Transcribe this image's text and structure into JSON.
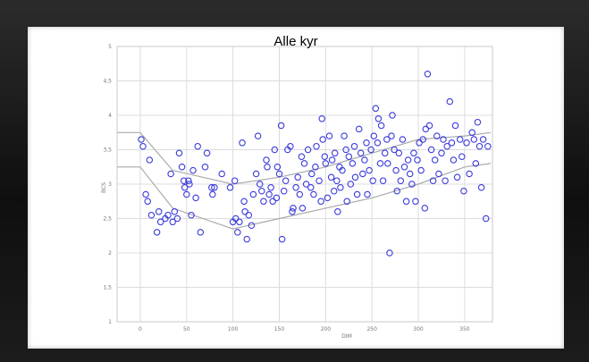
{
  "chart_data": {
    "type": "scatter",
    "title": "Alle kyr",
    "xlabel": "DIM",
    "ylabel": "BCS",
    "xlim": [
      -25,
      380
    ],
    "ylim": [
      1,
      5
    ],
    "x_ticks": [
      "0",
      "50",
      "100",
      "150",
      "200",
      "250",
      "300",
      "350"
    ],
    "y_ticks": [
      "1",
      "1,5",
      "2",
      "2,5",
      "3",
      "3,5",
      "4",
      "4,5",
      "5"
    ],
    "grid": true,
    "colors": {
      "points": "#3a3adb",
      "bands": "#aaaaaa",
      "grid": "#dcdcdc"
    },
    "points": [
      [
        1,
        3.65
      ],
      [
        3,
        3.55
      ],
      [
        6,
        2.85
      ],
      [
        8,
        2.75
      ],
      [
        10,
        3.35
      ],
      [
        12,
        2.55
      ],
      [
        18,
        2.3
      ],
      [
        20,
        2.6
      ],
      [
        22,
        2.45
      ],
      [
        27,
        2.5
      ],
      [
        30,
        2.55
      ],
      [
        33,
        3.15
      ],
      [
        35,
        2.45
      ],
      [
        37,
        2.6
      ],
      [
        40,
        2.5
      ],
      [
        42,
        3.45
      ],
      [
        45,
        3.25
      ],
      [
        47,
        3.05
      ],
      [
        48,
        2.95
      ],
      [
        50,
        2.85
      ],
      [
        52,
        3.05
      ],
      [
        53,
        3.0
      ],
      [
        55,
        2.55
      ],
      [
        57,
        3.2
      ],
      [
        60,
        2.8
      ],
      [
        62,
        3.55
      ],
      [
        65,
        2.3
      ],
      [
        70,
        3.25
      ],
      [
        72,
        3.45
      ],
      [
        77,
        2.95
      ],
      [
        78,
        2.85
      ],
      [
        80,
        2.95
      ],
      [
        88,
        3.15
      ],
      [
        97,
        2.95
      ],
      [
        100,
        2.45
      ],
      [
        102,
        3.05
      ],
      [
        103,
        2.5
      ],
      [
        105,
        2.3
      ],
      [
        107,
        2.45
      ],
      [
        110,
        3.6
      ],
      [
        112,
        2.75
      ],
      [
        113,
        2.6
      ],
      [
        115,
        2.2
      ],
      [
        117,
        2.55
      ],
      [
        120,
        2.4
      ],
      [
        122,
        2.85
      ],
      [
        125,
        3.15
      ],
      [
        127,
        3.7
      ],
      [
        129,
        3.0
      ],
      [
        131,
        2.9
      ],
      [
        133,
        2.75
      ],
      [
        136,
        3.35
      ],
      [
        137,
        3.25
      ],
      [
        139,
        2.85
      ],
      [
        141,
        2.95
      ],
      [
        143,
        2.75
      ],
      [
        145,
        3.5
      ],
      [
        147,
        2.8
      ],
      [
        148,
        3.25
      ],
      [
        150,
        3.15
      ],
      [
        152,
        3.85
      ],
      [
        153,
        2.2
      ],
      [
        155,
        2.9
      ],
      [
        157,
        3.05
      ],
      [
        159,
        3.5
      ],
      [
        162,
        3.55
      ],
      [
        164,
        2.6
      ],
      [
        165,
        2.65
      ],
      [
        168,
        2.95
      ],
      [
        170,
        3.1
      ],
      [
        172,
        2.85
      ],
      [
        174,
        3.4
      ],
      [
        175,
        2.65
      ],
      [
        177,
        3.3
      ],
      [
        179,
        3.0
      ],
      [
        181,
        3.5
      ],
      [
        184,
        2.95
      ],
      [
        185,
        3.15
      ],
      [
        187,
        2.85
      ],
      [
        189,
        3.25
      ],
      [
        190,
        3.55
      ],
      [
        193,
        3.05
      ],
      [
        195,
        2.75
      ],
      [
        196,
        3.95
      ],
      [
        197,
        3.65
      ],
      [
        199,
        3.4
      ],
      [
        200,
        3.3
      ],
      [
        202,
        2.8
      ],
      [
        204,
        3.7
      ],
      [
        206,
        3.1
      ],
      [
        207,
        3.35
      ],
      [
        209,
        2.9
      ],
      [
        210,
        3.45
      ],
      [
        212,
        3.05
      ],
      [
        213,
        2.6
      ],
      [
        215,
        3.25
      ],
      [
        216,
        2.95
      ],
      [
        218,
        3.2
      ],
      [
        220,
        3.7
      ],
      [
        222,
        3.5
      ],
      [
        223,
        2.75
      ],
      [
        225,
        3.4
      ],
      [
        227,
        3.0
      ],
      [
        229,
        3.3
      ],
      [
        231,
        3.55
      ],
      [
        232,
        3.1
      ],
      [
        234,
        2.85
      ],
      [
        236,
        3.8
      ],
      [
        238,
        3.45
      ],
      [
        240,
        3.15
      ],
      [
        242,
        3.35
      ],
      [
        244,
        3.6
      ],
      [
        245,
        2.85
      ],
      [
        247,
        3.2
      ],
      [
        249,
        3.5
      ],
      [
        251,
        3.05
      ],
      [
        252,
        3.7
      ],
      [
        254,
        4.1
      ],
      [
        256,
        3.6
      ],
      [
        257,
        3.95
      ],
      [
        259,
        3.3
      ],
      [
        260,
        3.85
      ],
      [
        262,
        3.05
      ],
      [
        264,
        3.45
      ],
      [
        266,
        3.65
      ],
      [
        267,
        3.3
      ],
      [
        269,
        2.0
      ],
      [
        271,
        3.7
      ],
      [
        272,
        4.0
      ],
      [
        274,
        3.5
      ],
      [
        276,
        3.2
      ],
      [
        277,
        2.9
      ],
      [
        279,
        3.45
      ],
      [
        281,
        3.05
      ],
      [
        283,
        3.65
      ],
      [
        285,
        3.25
      ],
      [
        287,
        2.75
      ],
      [
        289,
        3.35
      ],
      [
        291,
        3.15
      ],
      [
        293,
        3.0
      ],
      [
        295,
        3.45
      ],
      [
        297,
        2.75
      ],
      [
        299,
        3.35
      ],
      [
        301,
        3.6
      ],
      [
        303,
        3.2
      ],
      [
        305,
        3.65
      ],
      [
        307,
        2.65
      ],
      [
        308,
        3.8
      ],
      [
        310,
        4.6
      ],
      [
        312,
        3.85
      ],
      [
        314,
        3.5
      ],
      [
        316,
        3.05
      ],
      [
        318,
        3.35
      ],
      [
        320,
        3.7
      ],
      [
        322,
        3.15
      ],
      [
        325,
        3.45
      ],
      [
        327,
        3.65
      ],
      [
        329,
        3.05
      ],
      [
        331,
        3.55
      ],
      [
        334,
        4.2
      ],
      [
        336,
        3.6
      ],
      [
        338,
        3.35
      ],
      [
        340,
        3.85
      ],
      [
        342,
        3.1
      ],
      [
        345,
        3.65
      ],
      [
        347,
        3.4
      ],
      [
        349,
        2.9
      ],
      [
        352,
        3.6
      ],
      [
        355,
        3.15
      ],
      [
        358,
        3.75
      ],
      [
        360,
        3.65
      ],
      [
        362,
        3.3
      ],
      [
        364,
        3.9
      ],
      [
        366,
        3.55
      ],
      [
        368,
        2.95
      ],
      [
        370,
        3.65
      ],
      [
        373,
        2.5
      ],
      [
        375,
        3.55
      ]
    ],
    "bands": [
      {
        "x": [
          -25,
          0,
          35,
          100,
          150,
          200,
          250,
          300,
          350,
          378
        ],
        "y": [
          3.75,
          3.75,
          3.2,
          3.0,
          3.1,
          3.25,
          3.45,
          3.65,
          3.7,
          3.75
        ]
      },
      {
        "x": [
          -25,
          0,
          35,
          100,
          150,
          200,
          250,
          300,
          350,
          378
        ],
        "y": [
          3.25,
          3.25,
          2.65,
          2.35,
          2.5,
          2.65,
          2.8,
          3.0,
          3.25,
          3.3
        ]
      }
    ]
  }
}
